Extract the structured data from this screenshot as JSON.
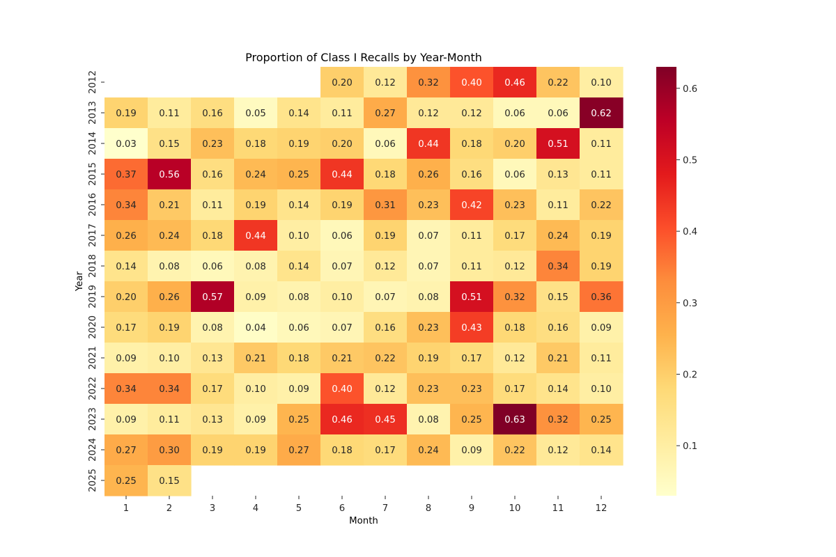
{
  "chart_data": {
    "type": "heatmap",
    "title": "Proportion of Class I Recalls by Year-Month",
    "xlabel": "Month",
    "ylabel": "Year",
    "x_categories": [
      "1",
      "2",
      "3",
      "4",
      "5",
      "6",
      "7",
      "8",
      "9",
      "10",
      "11",
      "12"
    ],
    "y_categories": [
      "2012",
      "2013",
      "2014",
      "2015",
      "2016",
      "2017",
      "2018",
      "2019",
      "2020",
      "2021",
      "2022",
      "2023",
      "2024",
      "2025"
    ],
    "values": [
      [
        null,
        null,
        null,
        null,
        null,
        0.2,
        0.12,
        0.32,
        0.4,
        0.46,
        0.22,
        0.1
      ],
      [
        0.19,
        0.11,
        0.16,
        0.05,
        0.14,
        0.11,
        0.27,
        0.12,
        0.12,
        0.06,
        0.06,
        0.62
      ],
      [
        0.03,
        0.15,
        0.23,
        0.18,
        0.19,
        0.2,
        0.06,
        0.44,
        0.18,
        0.2,
        0.51,
        0.11
      ],
      [
        0.37,
        0.56,
        0.16,
        0.24,
        0.25,
        0.44,
        0.18,
        0.26,
        0.16,
        0.06,
        0.13,
        0.11
      ],
      [
        0.34,
        0.21,
        0.11,
        0.19,
        0.14,
        0.19,
        0.31,
        0.23,
        0.42,
        0.23,
        0.11,
        0.22
      ],
      [
        0.26,
        0.24,
        0.18,
        0.44,
        0.1,
        0.06,
        0.19,
        0.07,
        0.11,
        0.17,
        0.24,
        0.19
      ],
      [
        0.14,
        0.08,
        0.06,
        0.08,
        0.14,
        0.07,
        0.12,
        0.07,
        0.11,
        0.12,
        0.34,
        0.19
      ],
      [
        0.2,
        0.26,
        0.57,
        0.09,
        0.08,
        0.1,
        0.07,
        0.08,
        0.51,
        0.32,
        0.15,
        0.36
      ],
      [
        0.17,
        0.19,
        0.08,
        0.04,
        0.06,
        0.07,
        0.16,
        0.23,
        0.43,
        0.18,
        0.16,
        0.09
      ],
      [
        0.09,
        0.1,
        0.13,
        0.21,
        0.18,
        0.21,
        0.22,
        0.19,
        0.17,
        0.12,
        0.21,
        0.11
      ],
      [
        0.34,
        0.34,
        0.17,
        0.1,
        0.09,
        0.4,
        0.12,
        0.23,
        0.23,
        0.17,
        0.14,
        0.1
      ],
      [
        0.09,
        0.11,
        0.13,
        0.09,
        0.25,
        0.46,
        0.45,
        0.08,
        0.25,
        0.63,
        0.32,
        0.25
      ],
      [
        0.27,
        0.3,
        0.19,
        0.19,
        0.27,
        0.18,
        0.17,
        0.24,
        0.09,
        0.22,
        0.12,
        0.14
      ],
      [
        0.25,
        0.15,
        null,
        null,
        null,
        null,
        null,
        null,
        null,
        null,
        null,
        null
      ]
    ],
    "value_format": "0.00",
    "colormap": "YlOrRd",
    "vmin": 0.03,
    "vmax": 0.63,
    "colorbar_ticks": [
      0.1,
      0.2,
      0.3,
      0.4,
      0.5,
      0.6
    ],
    "colorbar_tick_labels": [
      "0.1",
      "0.2",
      "0.3",
      "0.4",
      "0.5",
      "0.6"
    ],
    "missing_cells": "blank",
    "grid": false,
    "annotation_colors": {
      "light": "#ffffff",
      "dark": "#262626"
    }
  }
}
